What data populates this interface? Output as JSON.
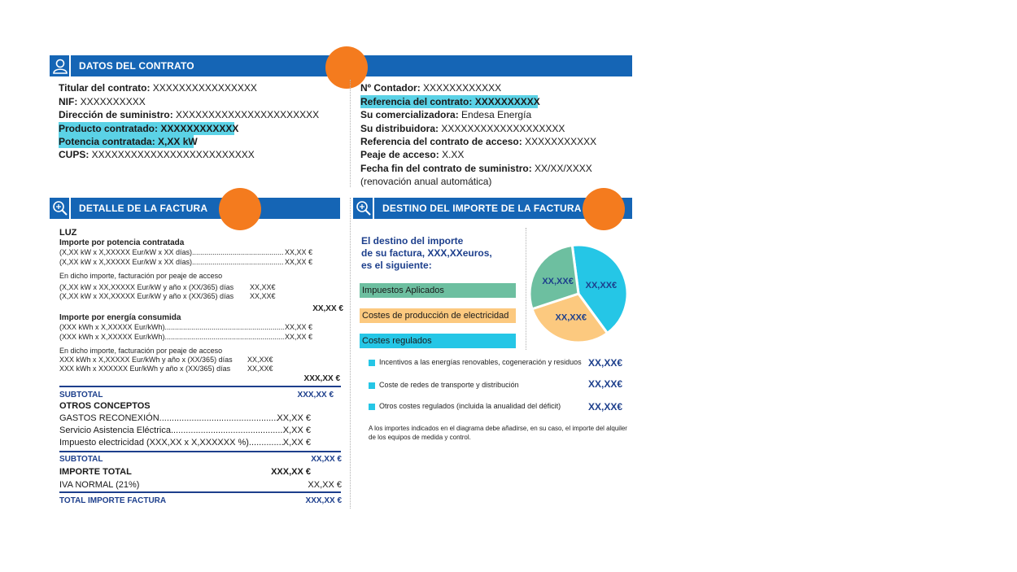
{
  "contrato": {
    "header": "DATOS DEL CONTRATO",
    "left": [
      {
        "label": "Titular del contrato:",
        "value": " XXXXXXXXXXXXXXXX"
      },
      {
        "label": "NIF:",
        "value": " XXXXXXXXXX"
      },
      {
        "label": "Dirección de suministro:",
        "value": " XXXXXXXXXXXXXXXXXXXXXX"
      },
      {
        "label": "Producto contratado:",
        "value": " XXXXXXXXXXXX"
      },
      {
        "label": "Potencia contratada:",
        "value": " X,XX kW"
      },
      {
        "label": "CUPS:",
        "value": " XXXXXXXXXXXXXXXXXXXXXXXXX"
      }
    ],
    "right": [
      {
        "label": "Nº Contador:",
        "value": " XXXXXXXXXXXX"
      },
      {
        "label": "Referencia del contrato:",
        "value": " XXXXXXXXXX"
      },
      {
        "label": "Su comercializadora:",
        "value": " Endesa Energía"
      },
      {
        "label": "Su distribuidora:",
        "value": " XXXXXXXXXXXXXXXXXXX"
      },
      {
        "label": "Referencia del contrato de acceso:",
        "value": " XXXXXXXXXXX"
      },
      {
        "label": "Peaje de acceso:",
        "value": " X.XX"
      },
      {
        "label": "Fecha fin del contrato de suministro:",
        "value": " XX/XX/XXXX"
      }
    ],
    "renovacion": "(renovación anual automática)"
  },
  "detalle": {
    "header": "DETALLE DE LA FACTURA",
    "luz": "LUZ",
    "potencia_title": "Importe por potencia contratada",
    "potencia_rows": [
      {
        "text": "(X,XX kW x X,XXXXX Eur/kW x XX días)...............................................................",
        "value": "XX,XX €"
      },
      {
        "text": "(X,XX kW x X,XXXXX Eur/kW x XX días)...............................................................",
        "value": "XX,XX €"
      }
    ],
    "peaje_note_1": "En dicho importe, facturación por peaje de acceso",
    "peaje_rows_1": [
      {
        "text": "(X,XX kW x XX,XXXXX Eur/kW y año x (XX/365) días",
        "value": "XX,XX€"
      },
      {
        "text": "(X,XX kW x XX,XXXXX Eur/kW y año x (XX/365) días",
        "value": "XX,XX€"
      }
    ],
    "potencia_total": "XX,XX €",
    "energia_title": "Importe por energía consumida",
    "energia_rows": [
      {
        "text": "(XXX kWh x X,XXXXX Eur/kWh)...............................................................................",
        "value": "XX,XX €"
      },
      {
        "text": "(XXX kWh x X,XXXXX Eur/kWh)...............................................................................",
        "value": "XX,XX €"
      }
    ],
    "peaje_note_2": "En dicho importe, facturación por peaje de acceso",
    "peaje_rows_2": [
      {
        "text": "XXX kWh x X,XXXXX Eur/kWh y año x (XX/365) días",
        "value": "XX,XX€"
      },
      {
        "text": "XXX kWh x XXXXXX Eur/kWh y año x (XX/365) días",
        "value": "XX,XX€"
      }
    ],
    "energia_total": "XXX,XX €",
    "subtotal_label": "SUBTOTAL",
    "subtotal_value": "XXX,XX €",
    "otros_title": "OTROS CONCEPTOS",
    "otros_rows": [
      {
        "text": "GASTOS RECONEXIÓN...................................................................",
        "value": "XX,XX €"
      },
      {
        "text": "Servicio Asistencia Eléctrica.....................................................",
        "value": "X,XX €"
      },
      {
        "text": "Impuesto electricidad (XXX,XX x X,XXXXXX %)......................",
        "value": "X,XX €"
      }
    ],
    "subtotal2_label": "SUBTOTAL",
    "subtotal2_value": "XX,XX €",
    "importe_total_label": "IMPORTE TOTAL",
    "importe_total_value": "XXX,XX €",
    "iva_label": "IVA NORMAL (21%)",
    "iva_value": "XX,XX €",
    "total_label": "TOTAL IMPORTE FACTURA",
    "total_value": "XXX,XX €"
  },
  "destino": {
    "header": "DESTINO DEL IMPORTE DE LA FACTURA",
    "intro": [
      "El destino del importe",
      "de su factura, XXX,XXeuros,",
      "es el siguiente:"
    ],
    "legend": [
      {
        "label": "Impuestos Aplicados",
        "color": "#6dbfa0"
      },
      {
        "label": "Costes de producción de electricidad",
        "color": "#fcc97f"
      },
      {
        "label": "Costes regulados",
        "color": "#25c6e6"
      }
    ],
    "regulados": [
      {
        "label": "Incentivos a las energías renovables, cogeneración y residuos",
        "value": "XX,XX€"
      },
      {
        "label": "Coste de redes de transporte y distribución",
        "value": "XX,XX€"
      },
      {
        "label": "Otros costes regulados (incluida la anualidad del déficit)",
        "value": "XX,XX€"
      }
    ],
    "note": [
      "A los importes indicados en el diagrama debe añadirse, en su caso, el importe del alquiler",
      "de los equipos de medida y control."
    ]
  },
  "chart_data": {
    "type": "pie",
    "slices": [
      {
        "label": "XX,XX€",
        "category": "Costes regulados",
        "value": 42,
        "color": "#25c6e6"
      },
      {
        "label": "XX,XX€",
        "category": "Costes de producción de electricidad",
        "value": 30,
        "color": "#fcc97f"
      },
      {
        "label": "XX,XX€",
        "category": "Impuestos Aplicados",
        "value": 28,
        "color": "#6dbfa0"
      }
    ],
    "title": ""
  }
}
